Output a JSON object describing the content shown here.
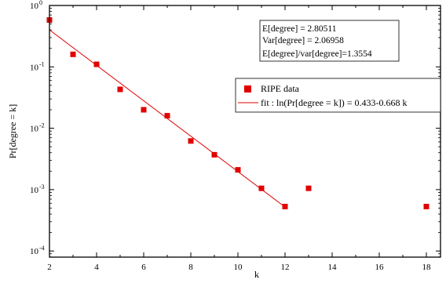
{
  "chart_data": {
    "type": "scatter",
    "xlabel": "k",
    "ylabel": "Pr[degree = k]",
    "xlim": [
      2,
      18.6
    ],
    "ylim_log10": [
      -4.1,
      0
    ],
    "y_scale": "log",
    "x_ticks": [
      2,
      4,
      6,
      8,
      10,
      12,
      14,
      16,
      18
    ],
    "x_tick_labels": [
      "2",
      "4",
      "6",
      "8",
      "10",
      "12",
      "14",
      "16",
      "18"
    ],
    "y_ticks_exponent": [
      0,
      -1,
      -2,
      -3,
      -4
    ],
    "y_tick_base": "10",
    "y_tick_exponents": [
      "0",
      "-1",
      "-2",
      "-3",
      "-4"
    ],
    "grid": false,
    "legend_position": "right-middle",
    "colors": {
      "series": "#e00000",
      "fit": "#e00000",
      "frame": "#000000"
    },
    "series": [
      {
        "name": "RIPE data",
        "marker": "square",
        "x": [
          2,
          3,
          4,
          5,
          6,
          7,
          8,
          9,
          10,
          11,
          12,
          13,
          18
        ],
        "y": [
          0.58,
          0.16,
          0.11,
          0.043,
          0.02,
          0.016,
          0.0062,
          0.0037,
          0.0021,
          0.00105,
          0.00053,
          0.00105,
          0.00053
        ]
      },
      {
        "name": "fit : ln(Pr[degree = k]) = 0.433-0.668 k",
        "type": "line",
        "x": [
          2,
          12
        ],
        "y": [
          0.4,
          0.00052
        ]
      }
    ],
    "annotations": {
      "stats": [
        "E[degree] = 2.80511",
        "Var[degree] = 2.06958",
        "E[degree]/var[degree]=1.3554"
      ]
    }
  }
}
